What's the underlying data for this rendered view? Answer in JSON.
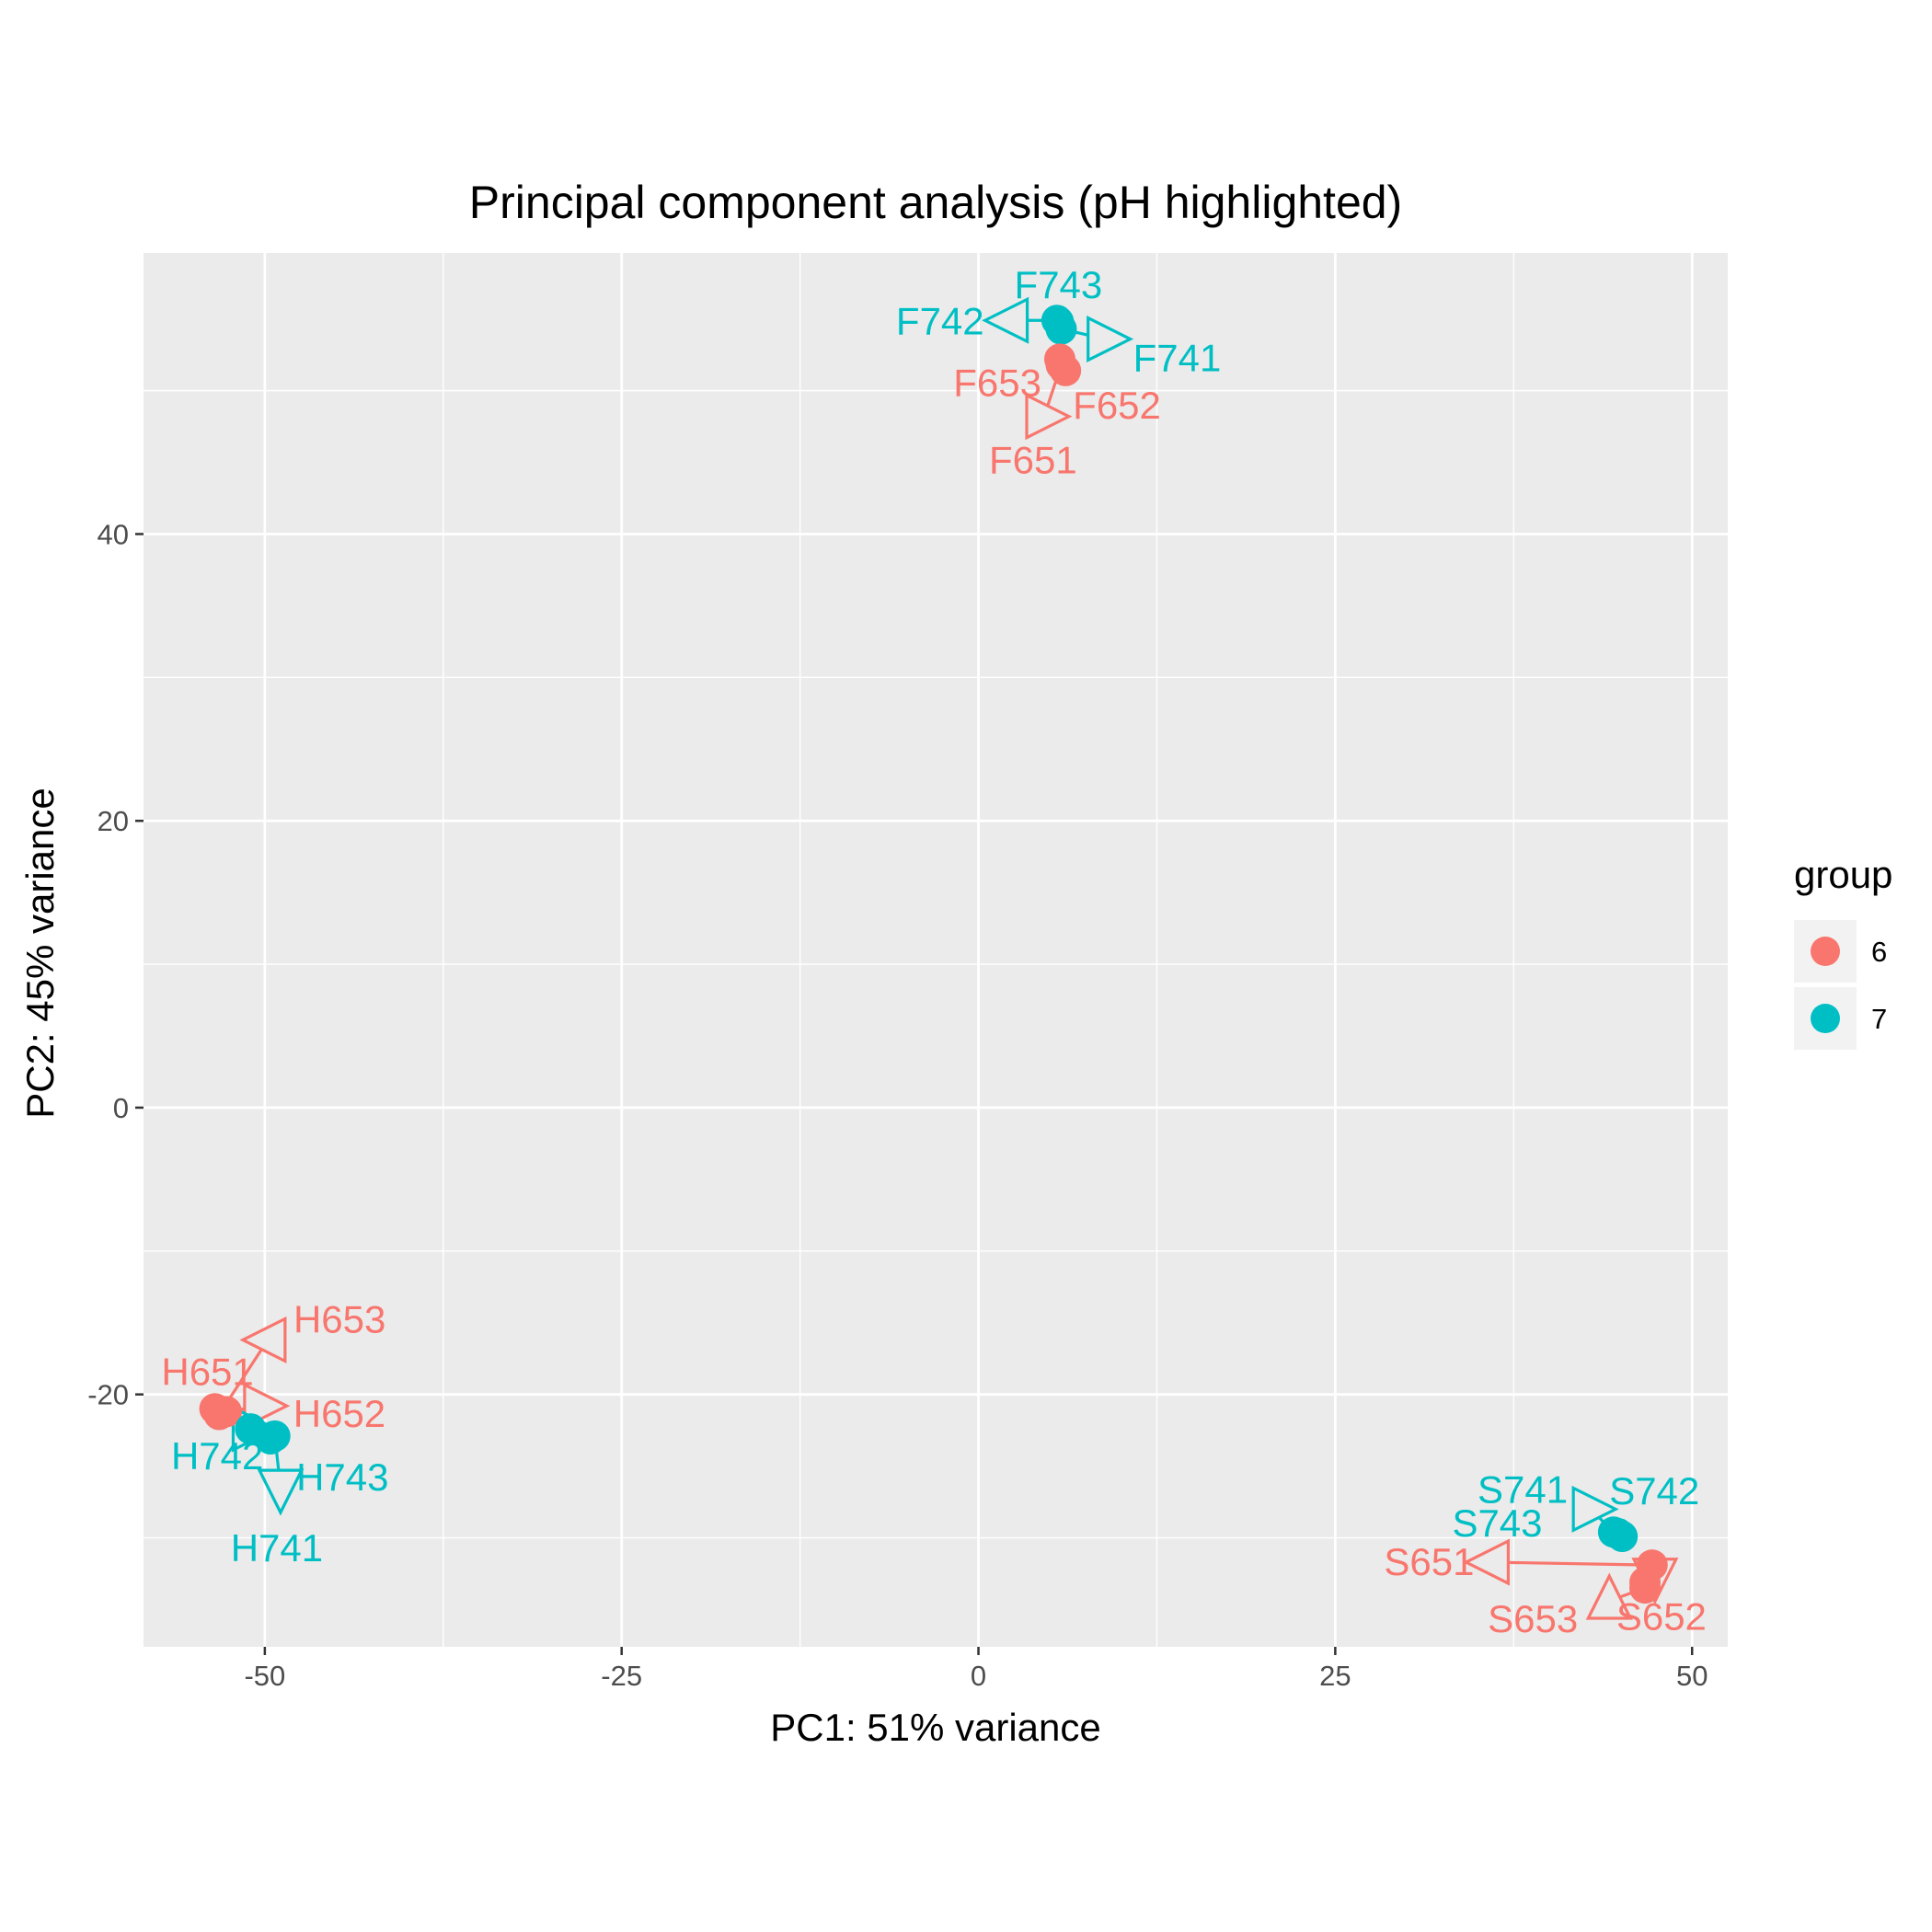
{
  "chart_data": {
    "type": "scatter",
    "title": "Principal component analysis (pH highlighted)",
    "xlabel": "PC1: 51% variance",
    "ylabel": "PC2: 45% variance",
    "xlim": [
      -58.5,
      52.5
    ],
    "ylim": [
      -37.6,
      59.6
    ],
    "xticks": [
      -50,
      -25,
      0,
      25,
      50
    ],
    "xtick_labels": [
      "-50",
      "-25",
      "0",
      "25",
      "50"
    ],
    "yticks": [
      -20,
      0,
      20,
      40
    ],
    "ytick_labels": [
      "-20",
      "0",
      "20",
      "40"
    ],
    "grid": true,
    "legend": {
      "title": "group",
      "position": "right",
      "entries": [
        {
          "label": "6",
          "color": "#F8766D"
        },
        {
          "label": "7",
          "color": "#00BFC4"
        }
      ]
    },
    "colors": {
      "6": "#F8766D",
      "7": "#00BFC4",
      "panel": "#EBEBEB",
      "grid": "#FFFFFF"
    },
    "points": [
      {
        "sample": "F741",
        "group": "7",
        "x": 5.8,
        "y": 54.3,
        "lx": 8.9,
        "ly": 53.6
      },
      {
        "sample": "F742",
        "group": "7",
        "x": 5.5,
        "y": 54.9,
        "lx": 2.2,
        "ly": 54.9
      },
      {
        "sample": "F743",
        "group": "7",
        "x": 5.6,
        "y": 54.8,
        "lx": 5.6,
        "ly": 54.8
      },
      {
        "sample": "F651",
        "group": "6",
        "x": 5.8,
        "y": 51.8,
        "lx": 4.6,
        "ly": 48.2
      },
      {
        "sample": "F652",
        "group": "6",
        "x": 6.1,
        "y": 51.4,
        "lx": 6.1,
        "ly": 51.4
      },
      {
        "sample": "F653",
        "group": "6",
        "x": 5.7,
        "y": 52.2,
        "lx": 5.7,
        "ly": 52.2
      },
      {
        "sample": "H651",
        "group": "6",
        "x": -53.5,
        "y": -21.0,
        "lx": -53.5,
        "ly": -21.0
      },
      {
        "sample": "H652",
        "group": "6",
        "x": -52.7,
        "y": -21.2,
        "lx": -50.2,
        "ly": -20.8
      },
      {
        "sample": "H653",
        "group": "6",
        "x": -53.2,
        "y": -21.4,
        "lx": -49.8,
        "ly": -16.2
      },
      {
        "sample": "H741",
        "group": "7",
        "x": -49.3,
        "y": -22.9,
        "lx": -48.9,
        "ly": -26.5
      },
      {
        "sample": "H742",
        "group": "7",
        "x": -51.0,
        "y": -22.4,
        "lx": -51.0,
        "ly": -22.4
      },
      {
        "sample": "H743",
        "group": "7",
        "x": -49.6,
        "y": -23.1,
        "lx": -49.6,
        "ly": -23.1
      },
      {
        "sample": "S741",
        "group": "7",
        "x": 44.5,
        "y": -29.6,
        "lx": 42.9,
        "ly": -28.0
      },
      {
        "sample": "S742",
        "group": "7",
        "x": 45.1,
        "y": -29.9,
        "lx": 45.1,
        "ly": -29.9
      },
      {
        "sample": "S743",
        "group": "7",
        "x": 44.8,
        "y": -29.7,
        "lx": 44.8,
        "ly": -29.7
      },
      {
        "sample": "S651",
        "group": "6",
        "x": 47.2,
        "y": -31.9,
        "lx": 35.9,
        "ly": -31.7
      },
      {
        "sample": "S652",
        "group": "6",
        "x": 46.7,
        "y": -33.1,
        "lx": 47.4,
        "ly": -32.7
      },
      {
        "sample": "S653",
        "group": "6",
        "x": 46.7,
        "y": -33.5,
        "lx": 44.2,
        "ly": -34.4
      }
    ]
  }
}
